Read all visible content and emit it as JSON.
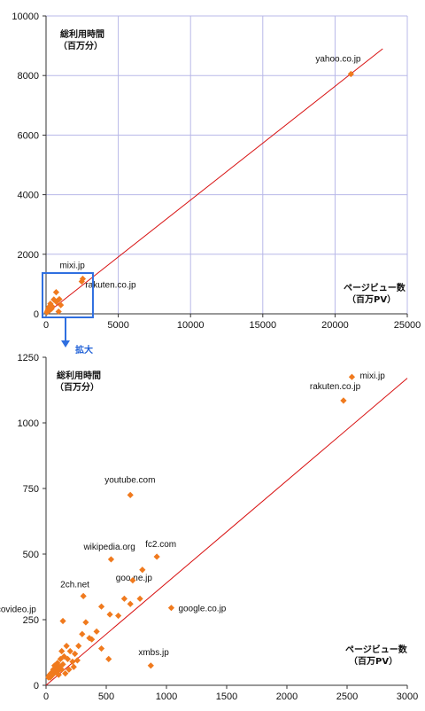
{
  "colors": {
    "marker": "#f07a1e",
    "fit_line": "#d81010",
    "grid": "#b8b8e8",
    "axis": "#333333",
    "zoom_box": "#2f6fe0"
  },
  "zoom_label": "拡大",
  "chart_data": [
    {
      "type": "scatter",
      "title": "",
      "ylabel_lines": [
        "総利用時間",
        "（百万分）"
      ],
      "xlabel_lines": [
        "ページビュー数",
        "（百万PV）"
      ],
      "xlim": [
        0,
        25000
      ],
      "ylim": [
        0,
        10000
      ],
      "xticks": [
        0,
        5000,
        10000,
        15000,
        20000,
        25000
      ],
      "yticks": [
        0,
        2000,
        4000,
        6000,
        8000,
        10000
      ],
      "grid": true,
      "trendline": {
        "x": [
          0,
          23300
        ],
        "y": [
          0,
          8900
        ]
      },
      "points": [
        {
          "x": 21100,
          "y": 8050,
          "label": "yahoo.co.jp"
        },
        {
          "x": 2540,
          "y": 1175,
          "label": "mixi.jp"
        },
        {
          "x": 2470,
          "y": 1085,
          "label": "rakuten.co.jp"
        },
        {
          "x": 700,
          "y": 725,
          "label": ""
        },
        {
          "x": 1020,
          "y": 295,
          "label": ""
        },
        {
          "x": 920,
          "y": 490,
          "label": ""
        },
        {
          "x": 540,
          "y": 480,
          "label": ""
        },
        {
          "x": 800,
          "y": 440,
          "label": ""
        },
        {
          "x": 720,
          "y": 400,
          "label": ""
        },
        {
          "x": 870,
          "y": 75,
          "label": ""
        },
        {
          "x": 300,
          "y": 340,
          "label": ""
        },
        {
          "x": 420,
          "y": 250,
          "label": ""
        },
        {
          "x": 200,
          "y": 230,
          "label": ""
        },
        {
          "x": 150,
          "y": 160,
          "label": ""
        },
        {
          "x": 110,
          "y": 110,
          "label": ""
        },
        {
          "x": 90,
          "y": 70,
          "label": ""
        },
        {
          "x": 60,
          "y": 50,
          "label": ""
        },
        {
          "x": 250,
          "y": 120,
          "label": ""
        },
        {
          "x": 380,
          "y": 170,
          "label": ""
        }
      ],
      "zoom_region": {
        "x": [
          0,
          3000
        ],
        "y": [
          0,
          1250
        ]
      }
    },
    {
      "type": "scatter",
      "title": "",
      "ylabel_lines": [
        "総利用時間",
        "（百万分）"
      ],
      "xlabel_lines": [
        "ページビュー数",
        "（百万PV）"
      ],
      "xlim": [
        0,
        3000
      ],
      "ylim": [
        0,
        1250
      ],
      "xticks": [
        0,
        500,
        1000,
        1500,
        2000,
        2500,
        3000
      ],
      "yticks": [
        0,
        250,
        500,
        750,
        1000,
        1250
      ],
      "grid": false,
      "trendline": {
        "x": [
          0,
          3000
        ],
        "y": [
          0,
          1170
        ]
      },
      "points": [
        {
          "x": 2540,
          "y": 1175,
          "label": "mixi.jp"
        },
        {
          "x": 2470,
          "y": 1085,
          "label": "rakuten.co.jp"
        },
        {
          "x": 700,
          "y": 725,
          "label": "youtube.com"
        },
        {
          "x": 540,
          "y": 480,
          "label": "wikipedia.org"
        },
        {
          "x": 920,
          "y": 490,
          "label": "fc2.com"
        },
        {
          "x": 800,
          "y": 440,
          "label": "goo.ne.jp"
        },
        {
          "x": 1040,
          "y": 295,
          "label": "google.co.jp"
        },
        {
          "x": 310,
          "y": 340,
          "label": "2ch.net"
        },
        {
          "x": 140,
          "y": 245,
          "label": "nicovideo.jp"
        },
        {
          "x": 870,
          "y": 75,
          "label": "xmbs.jp"
        },
        {
          "x": 720,
          "y": 400,
          "label": ""
        },
        {
          "x": 700,
          "y": 310,
          "label": ""
        },
        {
          "x": 650,
          "y": 330,
          "label": ""
        },
        {
          "x": 780,
          "y": 330,
          "label": ""
        },
        {
          "x": 600,
          "y": 265,
          "label": ""
        },
        {
          "x": 530,
          "y": 270,
          "label": ""
        },
        {
          "x": 460,
          "y": 300,
          "label": ""
        },
        {
          "x": 420,
          "y": 205,
          "label": ""
        },
        {
          "x": 460,
          "y": 140,
          "label": ""
        },
        {
          "x": 520,
          "y": 100,
          "label": ""
        },
        {
          "x": 380,
          "y": 175,
          "label": ""
        },
        {
          "x": 360,
          "y": 180,
          "label": ""
        },
        {
          "x": 330,
          "y": 240,
          "label": ""
        },
        {
          "x": 300,
          "y": 195,
          "label": ""
        },
        {
          "x": 270,
          "y": 150,
          "label": ""
        },
        {
          "x": 240,
          "y": 120,
          "label": ""
        },
        {
          "x": 220,
          "y": 90,
          "label": ""
        },
        {
          "x": 200,
          "y": 130,
          "label": ""
        },
        {
          "x": 180,
          "y": 100,
          "label": ""
        },
        {
          "x": 170,
          "y": 150,
          "label": ""
        },
        {
          "x": 150,
          "y": 110,
          "label": ""
        },
        {
          "x": 140,
          "y": 80,
          "label": ""
        },
        {
          "x": 130,
          "y": 60,
          "label": ""
        },
        {
          "x": 120,
          "y": 100,
          "label": ""
        },
        {
          "x": 110,
          "y": 70,
          "label": ""
        },
        {
          "x": 100,
          "y": 55,
          "label": ""
        },
        {
          "x": 95,
          "y": 85,
          "label": ""
        },
        {
          "x": 85,
          "y": 65,
          "label": ""
        },
        {
          "x": 80,
          "y": 50,
          "label": ""
        },
        {
          "x": 70,
          "y": 75,
          "label": ""
        },
        {
          "x": 65,
          "y": 45,
          "label": ""
        },
        {
          "x": 60,
          "y": 60,
          "label": ""
        },
        {
          "x": 55,
          "y": 40,
          "label": ""
        },
        {
          "x": 50,
          "y": 50,
          "label": ""
        },
        {
          "x": 45,
          "y": 35,
          "label": ""
        },
        {
          "x": 40,
          "y": 45,
          "label": ""
        },
        {
          "x": 35,
          "y": 30,
          "label": ""
        },
        {
          "x": 30,
          "y": 40,
          "label": ""
        },
        {
          "x": 25,
          "y": 35,
          "label": ""
        },
        {
          "x": 20,
          "y": 30,
          "label": ""
        },
        {
          "x": 160,
          "y": 45,
          "label": ""
        },
        {
          "x": 190,
          "y": 60,
          "label": ""
        },
        {
          "x": 230,
          "y": 70,
          "label": ""
        },
        {
          "x": 260,
          "y": 95,
          "label": ""
        },
        {
          "x": 130,
          "y": 130,
          "label": ""
        },
        {
          "x": 105,
          "y": 40,
          "label": ""
        }
      ]
    }
  ]
}
